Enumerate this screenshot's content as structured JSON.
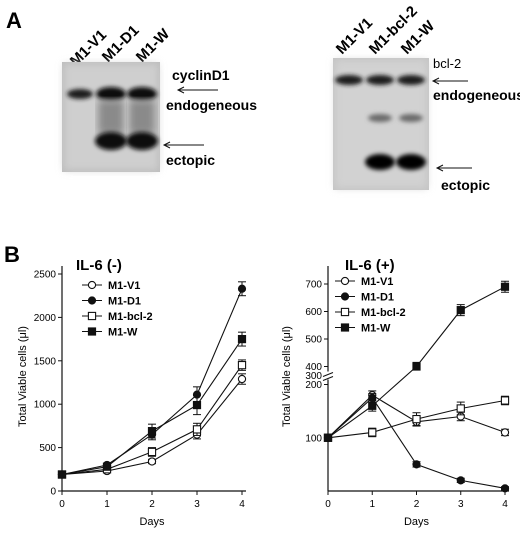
{
  "panelA": {
    "letter": "A",
    "blot1": {
      "lanes": [
        "M1-V1",
        "M1-D1",
        "M1-W"
      ],
      "labels": {
        "protein": "cyclinD1",
        "endogenous": "endogeneous",
        "ectopic": "ectopic"
      }
    },
    "blot2": {
      "lanes": [
        "M1-V1",
        "M1-bcl-2",
        "M1-W"
      ],
      "labels": {
        "protein": "bcl-2",
        "endogenous": "endogeneous",
        "ectopic": "ectopic"
      }
    }
  },
  "panelB": {
    "letter": "B"
  },
  "chart_data": [
    {
      "type": "line",
      "title": "IL-6 (-)",
      "xlabel": "Days",
      "ylabel": "Total Viable cells",
      "ylabel_unit": "(μl)",
      "x": [
        0,
        1,
        2,
        3,
        4
      ],
      "xlim": [
        0,
        4
      ],
      "ylim": [
        0,
        2500
      ],
      "yticks": [
        0,
        500,
        1000,
        1500,
        2000,
        2500
      ],
      "grid": false,
      "legend": "top-left",
      "series": [
        {
          "name": "M1-V1",
          "marker": "open-circle",
          "values": [
            190,
            230,
            340,
            650,
            1290
          ],
          "err": [
            15,
            15,
            25,
            50,
            60
          ]
        },
        {
          "name": "M1-D1",
          "marker": "filled-circle",
          "values": [
            190,
            300,
            650,
            1110,
            2330
          ],
          "err": [
            15,
            20,
            60,
            90,
            80
          ]
        },
        {
          "name": "M1-bcl-2",
          "marker": "open-square",
          "values": [
            190,
            250,
            450,
            710,
            1450
          ],
          "err": [
            15,
            15,
            50,
            70,
            60
          ]
        },
        {
          "name": "M1-W",
          "marker": "filled-square",
          "values": [
            190,
            280,
            690,
            990,
            1750
          ],
          "err": [
            15,
            20,
            80,
            110,
            80
          ]
        }
      ]
    },
    {
      "type": "line",
      "title": "IL-6 (+)",
      "xlabel": "Days",
      "ylabel": "Total Viable cells",
      "ylabel_unit": "(μl)",
      "x": [
        0,
        1,
        2,
        3,
        4
      ],
      "xlim": [
        0,
        4
      ],
      "ylim": [
        0,
        700
      ],
      "yticks": [
        100,
        200,
        300,
        400,
        500,
        600,
        700
      ],
      "axis_break": [
        200,
        400
      ],
      "grid": false,
      "legend": "top-left",
      "series": [
        {
          "name": "M1-V1",
          "marker": "open-circle",
          "values": [
            100,
            180,
            130,
            140,
            110
          ],
          "err": [
            5,
            8,
            8,
            8,
            6
          ]
        },
        {
          "name": "M1-D1",
          "marker": "filled-circle",
          "values": [
            100,
            175,
            50,
            20,
            5
          ],
          "err": [
            5,
            8,
            5,
            4,
            3
          ]
        },
        {
          "name": "M1-bcl-2",
          "marker": "open-square",
          "values": [
            100,
            110,
            135,
            155,
            170
          ],
          "err": [
            5,
            8,
            12,
            12,
            8
          ]
        },
        {
          "name": "M1-W",
          "marker": "filled-square",
          "values": [
            100,
            160,
            400,
            605,
            690
          ],
          "err": [
            5,
            10,
            15,
            20,
            20
          ]
        }
      ]
    }
  ]
}
